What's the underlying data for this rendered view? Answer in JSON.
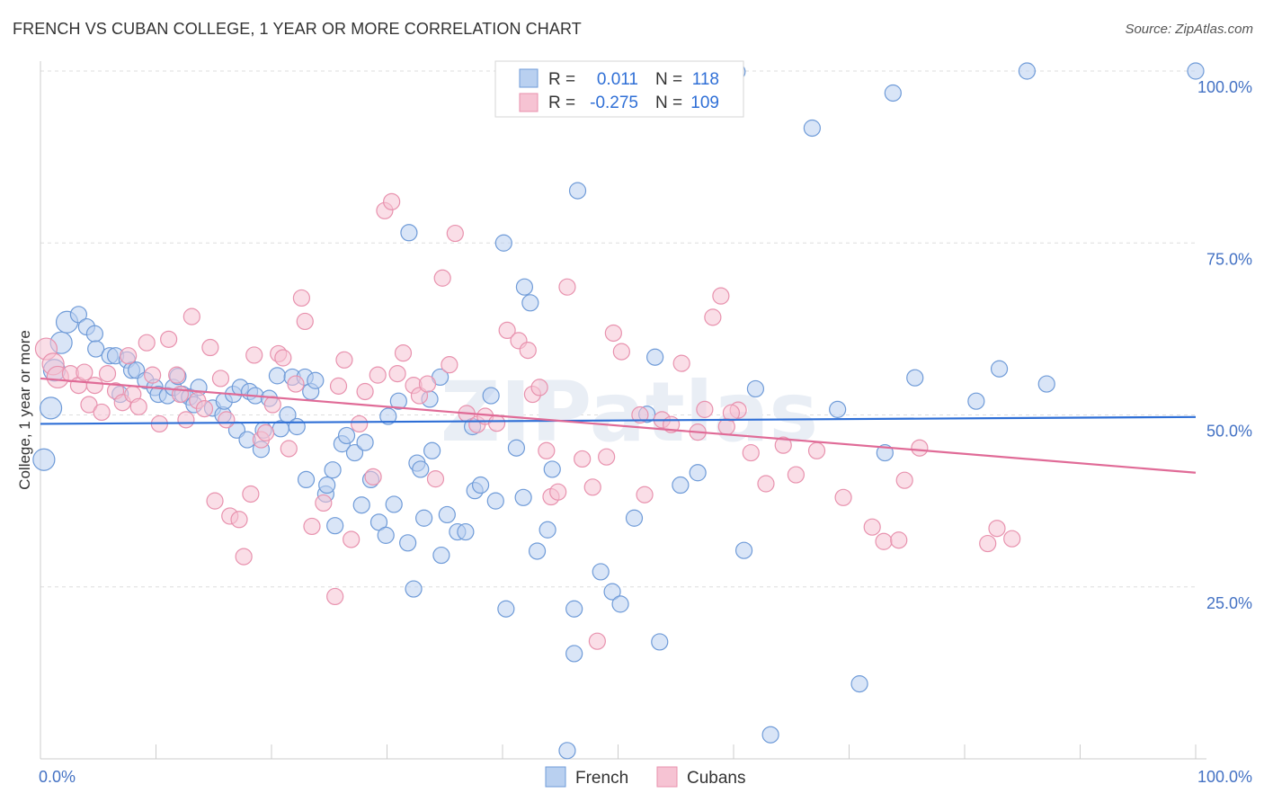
{
  "title": "FRENCH VS CUBAN COLLEGE, 1 YEAR OR MORE CORRELATION CHART",
  "source": "Source: ZipAtlas.com",
  "watermark": "ZIPatlas",
  "legend": {
    "r_label": "R =",
    "n_label": "N =",
    "french": {
      "r": "0.011",
      "n": "118"
    },
    "cubans": {
      "r": "-0.275",
      "n": "109"
    }
  },
  "bottom_legend": {
    "french": "French",
    "cubans": "Cubans"
  },
  "colors": {
    "french_fill": "#b9d0f0",
    "french_stroke": "#6f9bd8",
    "french_line": "#2f6fd6",
    "cubans_fill": "#f6c3d3",
    "cubans_stroke": "#e892ae",
    "cubans_line": "#e06b97",
    "grid": "#dddddd",
    "tick_label": "#4472c4"
  },
  "chart_data": {
    "type": "scatter",
    "title": "FRENCH VS CUBAN COLLEGE, 1 YEAR OR MORE CORRELATION CHART",
    "xlabel": "",
    "ylabel": "College, 1 year or more",
    "xlim": [
      0,
      100
    ],
    "ylim": [
      0,
      100
    ],
    "x_tick_labels": [
      "0.0%",
      "100.0%"
    ],
    "y_tick_labels": [
      "25.0%",
      "50.0%",
      "75.0%",
      "100.0%"
    ],
    "y_ticks": [
      25,
      50,
      75,
      100
    ],
    "grid": true,
    "legend_position": "top-center",
    "series": [
      {
        "name": "French",
        "trend": {
          "y_at_x0": 48.7,
          "y_at_x100": 49.7
        },
        "points": [
          [
            0.3,
            43.5
          ],
          [
            0.9,
            51
          ],
          [
            1.2,
            56.5
          ],
          [
            1.8,
            60.5
          ],
          [
            2.3,
            63.5
          ],
          [
            3.3,
            64.6
          ],
          [
            4,
            62.8
          ],
          [
            4.7,
            61.8
          ],
          [
            4.8,
            59.6
          ],
          [
            6,
            58.6
          ],
          [
            6.5,
            58.6
          ],
          [
            6.9,
            53
          ],
          [
            7.5,
            58
          ],
          [
            7.9,
            56.5
          ],
          [
            8.3,
            56.5
          ],
          [
            9.1,
            55
          ],
          [
            9.9,
            54
          ],
          [
            10.2,
            53
          ],
          [
            11,
            52.8
          ],
          [
            11.5,
            54
          ],
          [
            11.9,
            55.6
          ],
          [
            12.3,
            53
          ],
          [
            12.9,
            52.6
          ],
          [
            13.3,
            51.5
          ],
          [
            13.7,
            54
          ],
          [
            14.9,
            51
          ],
          [
            15.8,
            50
          ],
          [
            15.9,
            52
          ],
          [
            16.7,
            53
          ],
          [
            17,
            47.8
          ],
          [
            17.3,
            54
          ],
          [
            17.9,
            46.4
          ],
          [
            18.1,
            53.4
          ],
          [
            18.6,
            52.8
          ],
          [
            19.1,
            45
          ],
          [
            19.3,
            47.8
          ],
          [
            19.8,
            52.4
          ],
          [
            20.5,
            55.7
          ],
          [
            20.8,
            48
          ],
          [
            21.4,
            50
          ],
          [
            21.8,
            55.5
          ],
          [
            22.2,
            48.3
          ],
          [
            22.9,
            55.5
          ],
          [
            23,
            40.6
          ],
          [
            23.4,
            53.4
          ],
          [
            23.8,
            55
          ],
          [
            24.7,
            38.5
          ],
          [
            24.8,
            39.8
          ],
          [
            25.3,
            42
          ],
          [
            25.5,
            33.9
          ],
          [
            26.1,
            45.8
          ],
          [
            26.5,
            47
          ],
          [
            27.2,
            44.5
          ],
          [
            27.8,
            36.9
          ],
          [
            28.1,
            46
          ],
          [
            28.6,
            40.6
          ],
          [
            29.3,
            34.4
          ],
          [
            29.9,
            32.5
          ],
          [
            30.1,
            49.8
          ],
          [
            30.6,
            37
          ],
          [
            31,
            52
          ],
          [
            31.8,
            31.4
          ],
          [
            31.9,
            76.5
          ],
          [
            32.3,
            24.7
          ],
          [
            32.6,
            43
          ],
          [
            32.9,
            42.1
          ],
          [
            33.2,
            35
          ],
          [
            33.7,
            52.3
          ],
          [
            33.9,
            44.8
          ],
          [
            34.6,
            55.5
          ],
          [
            34.7,
            29.6
          ],
          [
            35.2,
            35.5
          ],
          [
            36.1,
            33
          ],
          [
            36.8,
            33
          ],
          [
            37.4,
            48.3
          ],
          [
            37.6,
            39
          ],
          [
            38.1,
            39.8
          ],
          [
            39,
            52.8
          ],
          [
            39.4,
            37.5
          ],
          [
            40.1,
            75
          ],
          [
            40.3,
            21.8
          ],
          [
            41.2,
            45.2
          ],
          [
            41.8,
            38
          ],
          [
            41.9,
            68.6
          ],
          [
            42.4,
            66.3
          ],
          [
            43,
            30.2
          ],
          [
            43.9,
            33.3
          ],
          [
            44.3,
            42.1
          ],
          [
            46.2,
            15.3
          ],
          [
            46.2,
            21.8
          ],
          [
            46.5,
            82.6
          ],
          [
            48.5,
            27.2
          ],
          [
            49.5,
            24.3
          ],
          [
            50.2,
            22.5
          ],
          [
            51.4,
            35
          ],
          [
            52.5,
            50.1
          ],
          [
            53.2,
            58.4
          ],
          [
            53.6,
            17
          ],
          [
            55.4,
            39.8
          ],
          [
            56.9,
            41.6
          ],
          [
            60.3,
            99.9
          ],
          [
            60.9,
            30.3
          ],
          [
            61.9,
            53.8
          ],
          [
            63.2,
            3.5
          ],
          [
            66.8,
            91.7
          ],
          [
            69,
            50.8
          ],
          [
            70.9,
            10.9
          ],
          [
            73.1,
            44.5
          ],
          [
            73.8,
            96.8
          ],
          [
            75.7,
            55.4
          ],
          [
            81,
            52
          ],
          [
            83,
            56.7
          ],
          [
            85.4,
            100
          ],
          [
            87.1,
            54.5
          ],
          [
            100,
            100
          ],
          [
            45.6,
            1.2
          ]
        ]
      },
      {
        "name": "Cubans",
        "trend": {
          "y_at_x0": 55.3,
          "y_at_x100": 41.6
        },
        "points": [
          [
            0.5,
            59.6
          ],
          [
            1.1,
            57.4
          ],
          [
            1.5,
            55.5
          ],
          [
            2.6,
            56
          ],
          [
            3.3,
            54.3
          ],
          [
            3.8,
            56.2
          ],
          [
            4.2,
            51.5
          ],
          [
            4.7,
            54.3
          ],
          [
            5.3,
            50.4
          ],
          [
            5.8,
            56
          ],
          [
            6.5,
            53.5
          ],
          [
            7.1,
            51.8
          ],
          [
            7.6,
            58.6
          ],
          [
            8,
            53
          ],
          [
            8.5,
            51.2
          ],
          [
            9.2,
            60.5
          ],
          [
            9.7,
            55.8
          ],
          [
            10.3,
            48.7
          ],
          [
            11.1,
            61
          ],
          [
            11.8,
            55.8
          ],
          [
            12.1,
            53
          ],
          [
            12.6,
            49.3
          ],
          [
            13.1,
            64.3
          ],
          [
            13.6,
            52.1
          ],
          [
            14.2,
            50.9
          ],
          [
            14.7,
            59.8
          ],
          [
            15.1,
            37.5
          ],
          [
            15.6,
            55.3
          ],
          [
            16.1,
            49.3
          ],
          [
            16.4,
            35.3
          ],
          [
            17.2,
            34.8
          ],
          [
            17.6,
            29.4
          ],
          [
            18.2,
            38.5
          ],
          [
            18.5,
            58.7
          ],
          [
            19.1,
            46.4
          ],
          [
            19.5,
            47.4
          ],
          [
            20.1,
            51.5
          ],
          [
            20.6,
            58.9
          ],
          [
            21,
            58.3
          ],
          [
            21.5,
            45.1
          ],
          [
            22.1,
            54.5
          ],
          [
            22.6,
            67
          ],
          [
            22.9,
            63.6
          ],
          [
            23.5,
            33.8
          ],
          [
            24.5,
            37.2
          ],
          [
            25.5,
            23.6
          ],
          [
            25.8,
            54.2
          ],
          [
            26.3,
            58
          ],
          [
            26.9,
            31.9
          ],
          [
            27.6,
            48.7
          ],
          [
            28.1,
            53.4
          ],
          [
            28.8,
            41
          ],
          [
            29.2,
            55.8
          ],
          [
            29.8,
            79.7
          ],
          [
            30.4,
            81
          ],
          [
            30.9,
            56
          ],
          [
            31.4,
            59
          ],
          [
            32.3,
            54.3
          ],
          [
            32.8,
            52.8
          ],
          [
            33.5,
            54.5
          ],
          [
            34.2,
            40.7
          ],
          [
            34.8,
            69.9
          ],
          [
            35.4,
            57.3
          ],
          [
            35.9,
            76.4
          ],
          [
            36.9,
            50.2
          ],
          [
            37.8,
            48.6
          ],
          [
            38.5,
            49.8
          ],
          [
            39.5,
            48.8
          ],
          [
            40.4,
            62.3
          ],
          [
            41.4,
            60.8
          ],
          [
            42.2,
            59.4
          ],
          [
            42.6,
            53
          ],
          [
            43.2,
            54
          ],
          [
            43.8,
            44.8
          ],
          [
            44.2,
            38.1
          ],
          [
            44.8,
            38.8
          ],
          [
            45.6,
            68.6
          ],
          [
            46.9,
            43.6
          ],
          [
            47.8,
            39.5
          ],
          [
            48.2,
            17.1
          ],
          [
            49,
            43.9
          ],
          [
            49.6,
            61.9
          ],
          [
            50.3,
            59.2
          ],
          [
            51.9,
            50
          ],
          [
            52.3,
            38.4
          ],
          [
            53.8,
            49.3
          ],
          [
            54.6,
            48.6
          ],
          [
            55.5,
            57.5
          ],
          [
            56.9,
            47.5
          ],
          [
            57.5,
            50.8
          ],
          [
            58.2,
            64.2
          ],
          [
            58.9,
            67.3
          ],
          [
            59.4,
            48.3
          ],
          [
            60.4,
            50.7
          ],
          [
            61.5,
            44.5
          ],
          [
            62.8,
            40
          ],
          [
            64.3,
            45.6
          ],
          [
            65.4,
            41.3
          ],
          [
            67.2,
            44.8
          ],
          [
            69.5,
            38
          ],
          [
            72,
            33.7
          ],
          [
            73,
            31.6
          ],
          [
            74.3,
            31.8
          ],
          [
            74.8,
            40.5
          ],
          [
            76.1,
            45.2
          ],
          [
            82,
            31.3
          ],
          [
            82.8,
            33.5
          ],
          [
            84.1,
            32
          ],
          [
            59.8,
            50.3
          ]
        ]
      }
    ]
  }
}
